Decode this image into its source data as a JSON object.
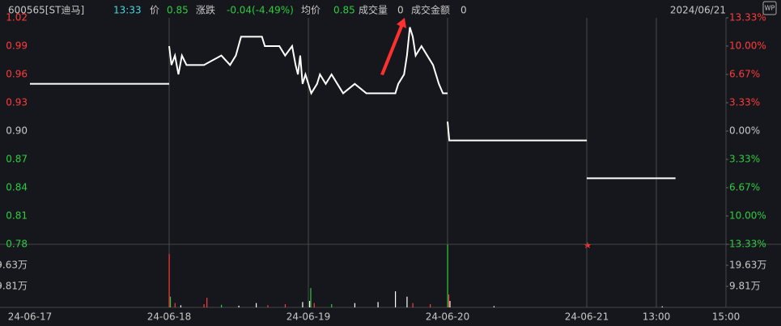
{
  "header": {
    "code": "600565[ST迪马]",
    "time": "13:33",
    "price_label": "价",
    "price": "0.85",
    "change_label": "涨跌",
    "change": "-0.04(-4.49%)",
    "avg_label": "均价",
    "avg": "0.85",
    "volume_label": "成交量",
    "volume": "0",
    "amount_label": "成交金额",
    "amount": "0",
    "date": "2024/06/21",
    "icon": "WP"
  },
  "chart_data": [
    {
      "type": "line",
      "color": "#ffffff",
      "x": [
        0,
        240,
        240,
        240,
        244,
        250,
        256,
        262,
        270,
        290,
        300,
        330,
        345,
        355,
        364,
        400,
        405,
        430,
        440,
        452,
        458,
        462,
        466,
        470,
        475,
        480,
        480,
        480,
        485,
        495,
        500,
        510,
        520,
        530,
        540,
        560,
        580,
        630,
        635,
        645,
        650,
        655,
        660,
        665,
        675,
        685,
        695,
        700,
        705,
        712,
        720,
        720,
        720,
        723,
        960,
        960,
        960,
        1113
      ],
      "values": [
        0.95,
        0.95,
        null,
        0.99,
        0.97,
        0.98,
        0.96,
        0.98,
        0.97,
        0.97,
        0.97,
        0.98,
        0.97,
        0.98,
        1.0,
        1.0,
        0.99,
        0.99,
        0.98,
        0.99,
        0.97,
        0.96,
        0.98,
        0.95,
        0.96,
        0.95,
        null,
        0.95,
        0.94,
        0.95,
        0.96,
        0.95,
        0.96,
        0.95,
        0.94,
        0.95,
        0.94,
        0.94,
        0.95,
        0.96,
        0.98,
        1.01,
        1.0,
        0.98,
        0.99,
        0.98,
        0.97,
        0.96,
        0.95,
        0.94,
        0.94,
        null,
        0.91,
        0.89,
        0.89,
        null,
        0.85,
        0.85
      ],
      "xlim": [
        0,
        1200
      ],
      "xticks": [
        {
          "value": 0,
          "label": "24-06-17"
        },
        {
          "value": 240,
          "label": "24-06-18"
        },
        {
          "value": 480,
          "label": "24-06-19"
        },
        {
          "value": 720,
          "label": "24-06-20"
        },
        {
          "value": 960,
          "label": "24-06-21"
        },
        {
          "value": 1080,
          "label": "13:00"
        },
        {
          "value": 1200,
          "label": "15:00"
        }
      ],
      "ylim": [
        0.78,
        1.02
      ],
      "yticks": [
        {
          "value": 1.02,
          "label": "1.02"
        },
        {
          "value": 0.99,
          "label": "0.99"
        },
        {
          "value": 0.96,
          "label": "0.96"
        },
        {
          "value": 0.93,
          "label": "0.93"
        },
        {
          "value": 0.9,
          "label": "0.90"
        },
        {
          "value": 0.87,
          "label": "0.87"
        },
        {
          "value": 0.84,
          "label": "0.84"
        },
        {
          "value": 0.81,
          "label": "0.81"
        },
        {
          "value": 0.78,
          "label": "0.78"
        }
      ],
      "y2lim": [
        -13.33,
        13.33
      ],
      "y2ticks": [
        {
          "value": 13.33,
          "label": "13.33%"
        },
        {
          "value": 10,
          "label": "10.00%"
        },
        {
          "value": 6.67,
          "label": "6.67%"
        },
        {
          "value": 3.33,
          "label": "3.33%"
        },
        {
          "value": 0,
          "label": "0.00%"
        },
        {
          "value": -3.33,
          "label": "3.33%"
        },
        {
          "value": -6.67,
          "label": "6.67%"
        },
        {
          "value": -10,
          "label": "10.00%"
        },
        {
          "value": -13.33,
          "label": "13.33%"
        }
      ]
    },
    {
      "type": "bar",
      "x": [
        240,
        242,
        250,
        260,
        300,
        305,
        330,
        360,
        390,
        410,
        440,
        470,
        482,
        484,
        490,
        520,
        560,
        600,
        630,
        650,
        660,
        690,
        720,
        722,
        724,
        800,
        1090
      ],
      "values": [
        24.9,
        5,
        2,
        1,
        1.5,
        4.5,
        1.2,
        0.8,
        2,
        1,
        1.5,
        2.5,
        3,
        9,
        2,
        1.5,
        2,
        2.5,
        7.5,
        5,
        2,
        1.5,
        29.3,
        6,
        3,
        0.6,
        0.5
      ],
      "colors": [
        "#ff3b3b",
        "#2ecc40",
        "#ff3b3b",
        "#ffffff",
        "#ff3b3b",
        "#ff3b3b",
        "#2ecc40",
        "#ffffff",
        "#ffffff",
        "#ff3b3b",
        "#ff3b3b",
        "#ffffff",
        "#ffffff",
        "#2ecc40",
        "#ff3b3b",
        "#2ecc40",
        "#ffffff",
        "#ffffff",
        "#ffffff",
        "#ffffff",
        "#ff3b3b",
        "#ff3b3b",
        "#2ecc40",
        "#ff3b3b",
        "#ffffff",
        "#ffffff",
        "#ffffff"
      ],
      "xlim": [
        0,
        1200
      ],
      "ylim": [
        0,
        29.44
      ],
      "yticks": [
        {
          "value": 19.63,
          "label": "19.63万"
        },
        {
          "value": 9.81,
          "label": "9.81万"
        }
      ]
    }
  ]
}
